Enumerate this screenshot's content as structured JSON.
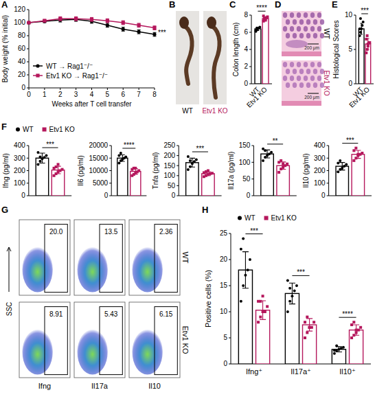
{
  "chart_data": [
    {
      "type": "line",
      "panel_label": "A",
      "xlabel": "Weeks after T cell transfer",
      "ylabel": "Body weight (% initial)",
      "x": [
        0,
        1,
        2,
        3,
        4,
        5,
        6,
        7,
        8
      ],
      "xlim": [
        0,
        8
      ],
      "xticks": [
        0,
        1,
        2,
        3,
        4,
        5,
        6,
        7,
        8
      ],
      "ylim": [
        0,
        120
      ],
      "yticks": [
        0,
        20,
        40,
        60,
        80,
        100,
        120
      ],
      "legend": "bottom-left",
      "annotations": [
        "***"
      ],
      "series": [
        {
          "name": "WT → Rag1⁻/⁻",
          "color": "#000000",
          "marker": "circle",
          "values": [
            100,
            102,
            104,
            105,
            102,
            96,
            90,
            86,
            82
          ],
          "errors": [
            0,
            2,
            3,
            3,
            3,
            3,
            3,
            3,
            3
          ]
        },
        {
          "name": "Etv1 KO → Rag1⁻/⁻",
          "color": "#b5175c",
          "marker": "square",
          "values": [
            100,
            103,
            106,
            106,
            105,
            103,
            100,
            96,
            92
          ],
          "errors": [
            0,
            2,
            3,
            3,
            3,
            3,
            3,
            3,
            3
          ]
        }
      ]
    },
    {
      "type": "image",
      "panel_label": "B",
      "labels": [
        "WT",
        "Etv1 KO"
      ],
      "colors": [
        "#000000",
        "#b5175c"
      ]
    },
    {
      "type": "bar",
      "panel_label": "C",
      "series": [
        {
          "name": "WT",
          "color": "#000000",
          "marker": "circle"
        },
        {
          "name": "Etv1 KO",
          "color": "#b5175c",
          "marker": "square"
        }
      ],
      "subplots": [
        {
          "ylabel": "Colon length (cm)",
          "ylim": [
            0,
            8
          ],
          "yticks": [
            0,
            2,
            4,
            6,
            8
          ],
          "values": [
            6.4,
            7.6
          ],
          "errors": [
            0.2,
            0.2
          ],
          "points": [
            [
              6.1,
              6.3,
              6.4,
              6.5,
              6.6,
              6.2,
              6.5
            ],
            [
              7.3,
              7.5,
              7.6,
              7.7,
              7.8,
              7.9,
              7.6,
              7.4
            ]
          ],
          "annotations": [
            "****"
          ]
        }
      ]
    },
    {
      "type": "image",
      "panel_label": "D",
      "labels": [
        "WT",
        "Etv1 KO"
      ],
      "colors": [
        "#000000",
        "#b5175c"
      ],
      "scale_bar": "200 μm"
    },
    {
      "type": "bar",
      "panel_label": "E",
      "series": [
        {
          "name": "WT",
          "color": "#000000",
          "marker": "circle"
        },
        {
          "name": "Etv1 KO",
          "color": "#b5175c",
          "marker": "square"
        }
      ],
      "subplots": [
        {
          "ylabel": "Histological Scores",
          "ylim": [
            0,
            10
          ],
          "yticks": [
            0,
            5,
            10
          ],
          "values": [
            8,
            5.8
          ],
          "errors": [
            0.8,
            0.8
          ],
          "points": [
            [
              7,
              7.5,
              8,
              8.5,
              9,
              8,
              9.5
            ],
            [
              4.5,
              5,
              5.5,
              6,
              6,
              6.5,
              7,
              5.8
            ]
          ],
          "annotations": [
            "***"
          ]
        }
      ]
    },
    {
      "type": "bar",
      "panel_label": "F",
      "legend": "top-left",
      "series": [
        {
          "name": "WT",
          "color": "#000000",
          "marker": "circle"
        },
        {
          "name": "Etv1 KO",
          "color": "#b5175c",
          "marker": "square"
        }
      ],
      "subplots": [
        {
          "ylabel": "Ifng (pg/ml)",
          "ylim": [
            0,
            400
          ],
          "yticks": [
            0,
            100,
            200,
            300,
            400
          ],
          "values": [
            300,
            205
          ],
          "errors": [
            40,
            30
          ],
          "points": [
            [
              250,
              275,
              295,
              305,
              320,
              345,
              310
            ],
            [
              160,
              175,
              190,
              200,
              210,
              220,
              230,
              250
            ]
          ],
          "annotations": [
            "***"
          ]
        },
        {
          "ylabel": "Il6 (pg/ml)",
          "ylim": [
            0,
            20000
          ],
          "yticks": [
            0,
            5000,
            10000,
            15000,
            20000
          ],
          "values": [
            15000,
            9700
          ],
          "errors": [
            1300,
            1100
          ],
          "points": [
            [
              13000,
              14000,
              14500,
              15000,
              15500,
              16000,
              17000
            ],
            [
              8000,
              8500,
              9000,
              9500,
              10000,
              10500,
              11000,
              11000
            ]
          ],
          "annotations": [
            "****"
          ]
        },
        {
          "ylabel": "Tnfa (pg/ml)",
          "ylim": [
            0,
            250
          ],
          "yticks": [
            0,
            50,
            100,
            150,
            200,
            250
          ],
          "values": [
            165,
            110
          ],
          "errors": [
            22,
            10
          ],
          "points": [
            [
              130,
              145,
              160,
              170,
              180,
              195,
              175
            ],
            [
              95,
              100,
              105,
              110,
              112,
              115,
              120,
              125
            ]
          ],
          "annotations": [
            "***"
          ]
        },
        {
          "ylabel": "Il17a (pg/ml)",
          "ylim": [
            0,
            150
          ],
          "yticks": [
            0,
            50,
            100,
            150
          ],
          "values": [
            125,
            90
          ],
          "errors": [
            12,
            11
          ],
          "points": [
            [
              105,
              115,
              120,
              125,
              130,
              140,
              135
            ],
            [
              70,
              80,
              85,
              90,
              95,
              100,
              105,
              95
            ]
          ],
          "annotations": [
            "**"
          ]
        },
        {
          "ylabel": "Il10 (pg/ml)",
          "ylim": [
            0,
            400
          ],
          "yticks": [
            0,
            100,
            200,
            300,
            400
          ],
          "values": [
            235,
            330
          ],
          "errors": [
            30,
            32
          ],
          "points": [
            [
              190,
              210,
              220,
              235,
              250,
              260,
              280
            ],
            [
              280,
              300,
              320,
              330,
              340,
              360,
              380,
              330
            ]
          ],
          "annotations": [
            "***"
          ]
        }
      ]
    },
    {
      "type": "flow",
      "panel_label": "G",
      "ylabel": "SSC",
      "rows": [
        "WT",
        "Etv1 KO"
      ],
      "columns": [
        "Ifng",
        "Il17a",
        "Il10"
      ],
      "values": [
        [
          {
            "value": 20.0,
            "label": "20.0"
          },
          13.5,
          2.36
        ],
        [
          8.91,
          5.43,
          6.15
        ]
      ]
    },
    {
      "type": "bar",
      "panel_label": "H",
      "ylabel": "Positive cells (%)",
      "categories": [
        "Ifng⁺",
        "Il17a⁺",
        "Il10⁺"
      ],
      "ylim": [
        0,
        25
      ],
      "yticks": [
        0,
        5,
        10,
        15,
        20,
        25
      ],
      "legend": "top-left",
      "annotations": [
        "***",
        "***",
        "****"
      ],
      "series": [
        {
          "name": "WT",
          "color": "#000000",
          "marker": "circle",
          "values": [
            18,
            13.5,
            2.8
          ],
          "errors": [
            3.5,
            2,
            0.5
          ],
          "points": [
            [
              12,
              15,
              17,
              18,
              20,
              22,
              24
            ],
            [
              10,
              12,
              13,
              14,
              15,
              16,
              14.5
            ],
            [
              2,
              2.5,
              2.8,
              3,
              3.2,
              2.6,
              3.5
            ]
          ]
        },
        {
          "name": "Etv1 KO",
          "color": "#b5175c",
          "marker": "square",
          "values": [
            10.3,
            7.5,
            6.5
          ],
          "errors": [
            1.8,
            1.2,
            1
          ],
          "points": [
            [
              8,
              9,
              10,
              10,
              11,
              12,
              12,
              13
            ],
            [
              5,
              6,
              7,
              7,
              8,
              8,
              9,
              7
            ],
            [
              5,
              5.5,
              6,
              6.5,
              7,
              7.5,
              8,
              6.5
            ]
          ]
        }
      ]
    }
  ]
}
